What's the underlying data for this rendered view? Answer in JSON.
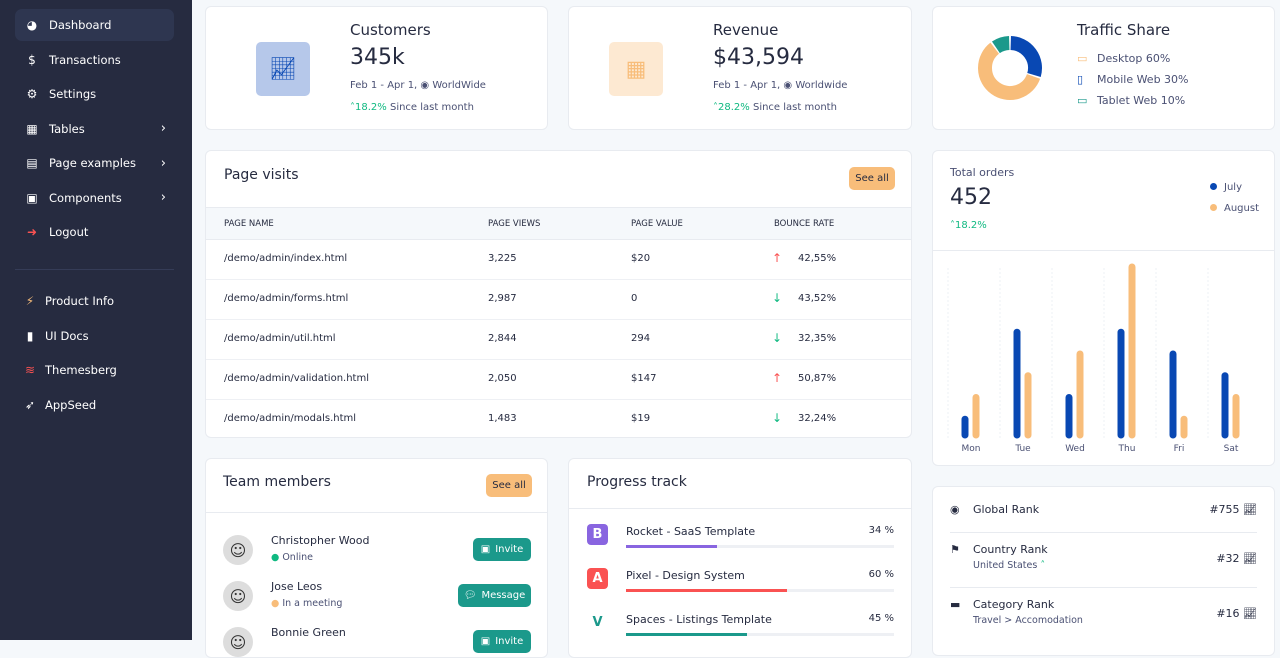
{
  "sidebar": {
    "items": [
      {
        "label": "Dashboard",
        "icon": "chart-pie-icon",
        "active": true
      },
      {
        "label": "Transactions",
        "icon": "hand-dollar-icon"
      },
      {
        "label": "Settings",
        "icon": "gear-icon"
      },
      {
        "label": "Tables",
        "icon": "table-icon",
        "chevron": true
      },
      {
        "label": "Page examples",
        "icon": "file-icon",
        "chevron": true
      },
      {
        "label": "Components",
        "icon": "box-icon",
        "chevron": true
      },
      {
        "label": "Logout",
        "icon": "sign-out-icon"
      }
    ],
    "links": [
      {
        "label": "Product Info",
        "icon": "bolt-icon"
      },
      {
        "label": "UI Docs",
        "icon": "book-icon"
      },
      {
        "label": "Themesberg",
        "icon": "themesberg-icon"
      },
      {
        "label": "AppSeed",
        "icon": "rocket-icon"
      }
    ]
  },
  "customers": {
    "title": "Customers",
    "value": "345k",
    "range": "Feb 1 - Apr 1,",
    "region": "WorldWide",
    "change": "18.2%",
    "since": "Since last month"
  },
  "revenue": {
    "title": "Revenue",
    "value": "$43,594",
    "range": "Feb 1 - Apr 1,",
    "region": "Worldwide",
    "change": "28.2%",
    "since": "Since last month"
  },
  "traffic": {
    "title": "Traffic Share",
    "items": [
      {
        "label": "Desktop 60%",
        "value": 60,
        "color": "#f8bd7a"
      },
      {
        "label": "Mobile Web 30%",
        "value": 30,
        "color": "#0948b3"
      },
      {
        "label": "Tablet Web 10%",
        "value": 10,
        "color": "#1b998b"
      }
    ]
  },
  "page_visits": {
    "title": "Page visits",
    "see_all": "See all",
    "columns": [
      "PAGE NAME",
      "PAGE VIEWS",
      "PAGE VALUE",
      "BOUNCE RATE"
    ],
    "rows": [
      [
        "/demo/admin/index.html",
        "3,225",
        "$20",
        "42,55%",
        "up"
      ],
      [
        "/demo/admin/forms.html",
        "2,987",
        "0",
        "43,52%",
        "down"
      ],
      [
        "/demo/admin/util.html",
        "2,844",
        "294",
        "32,35%",
        "down"
      ],
      [
        "/demo/admin/validation.html",
        "2,050",
        "$147",
        "50,87%",
        "up"
      ],
      [
        "/demo/admin/modals.html",
        "1,483",
        "$19",
        "32,24%",
        "down"
      ]
    ]
  },
  "orders": {
    "title": "Total orders",
    "value": "452",
    "change": "18.2%"
  },
  "chart_data": {
    "type": "bar",
    "categories": [
      "Mon",
      "Tue",
      "Wed",
      "Thu",
      "Fri",
      "Sat"
    ],
    "series": [
      {
        "name": "July",
        "color": "#0948b3",
        "values": [
          1,
          5,
          2,
          5,
          4,
          3
        ]
      },
      {
        "name": "August",
        "color": "#f8bd7a",
        "values": [
          2,
          3,
          4,
          8,
          1,
          2
        ]
      }
    ],
    "ylim": [
      0,
      8
    ],
    "grid": "vertical",
    "legend": "top-right"
  },
  "team": {
    "title": "Team members",
    "see_all": "See all",
    "members": [
      {
        "name": "Christopher Wood",
        "status": "Online",
        "status_color": "#10b981",
        "action": "Invite"
      },
      {
        "name": "Jose Leos",
        "status": "In a meeting",
        "status_color": "#f8bd7a",
        "action": "Message"
      },
      {
        "name": "Bonnie Green",
        "status": "",
        "status_color": "",
        "action": "Invite"
      }
    ]
  },
  "progress": {
    "title": "Progress track",
    "items": [
      {
        "name": "Rocket - SaaS Template",
        "pct_label": "34 %",
        "pct": 34,
        "color": "#8965e0",
        "icon": "bootstrap-icon",
        "letter": "B"
      },
      {
        "name": "Pixel - Design System",
        "pct_label": "60 %",
        "pct": 60,
        "color": "#fa5252",
        "icon": "angular-icon",
        "letter": "A"
      },
      {
        "name": "Spaces - Listings Template",
        "pct_label": "45 %",
        "pct": 45,
        "color": "#1b998b",
        "icon": "vue-icon",
        "letter": "V"
      }
    ]
  },
  "ranks": [
    {
      "label": "Global Rank",
      "sub": "",
      "value": "#755",
      "icon": "globe-icon"
    },
    {
      "label": "Country Rank",
      "sub": "United States",
      "value": "#32",
      "icon": "flag-icon"
    },
    {
      "label": "Category Rank",
      "sub": "Travel > Accomodation",
      "value": "#16",
      "icon": "folder-icon"
    }
  ]
}
